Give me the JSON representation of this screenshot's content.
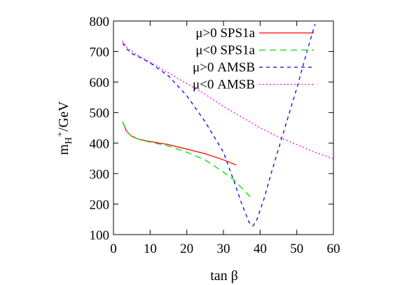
{
  "chart_data": {
    "type": "line",
    "xlabel": "tan β",
    "ylabel_main": "m",
    "ylabel_sub": "H",
    "ylabel_sup": "+",
    "ylabel_tail": "/GeV",
    "xlim": [
      0,
      60
    ],
    "ylim": [
      100,
      800
    ],
    "x_ticks": [
      0,
      10,
      20,
      30,
      40,
      50,
      60
    ],
    "y_ticks": [
      100,
      200,
      300,
      400,
      500,
      600,
      700,
      800
    ],
    "grid": false,
    "legend_position": "top-right",
    "series": [
      {
        "name": "μ>0 SPS1a",
        "color": "#ff0000",
        "dash": "solid",
        "points": [
          [
            2.5,
            470
          ],
          [
            3.5,
            440
          ],
          [
            5,
            422
          ],
          [
            7,
            412
          ],
          [
            10,
            405
          ],
          [
            15,
            395
          ],
          [
            20,
            380
          ],
          [
            25,
            365
          ],
          [
            30,
            345
          ],
          [
            33.5,
            328
          ]
        ]
      },
      {
        "name": "μ<0 SPS1a",
        "color": "#00dd00",
        "dash": "long-dash",
        "points": [
          [
            2.5,
            470
          ],
          [
            3.5,
            440
          ],
          [
            5,
            422
          ],
          [
            7,
            412
          ],
          [
            10,
            403
          ],
          [
            15,
            390
          ],
          [
            20,
            370
          ],
          [
            25,
            345
          ],
          [
            30,
            305
          ],
          [
            33,
            278
          ],
          [
            36,
            240
          ],
          [
            38,
            215
          ]
        ]
      },
      {
        "name": "μ>0 AMSB",
        "color": "#0000ff",
        "dash": "short-dash",
        "points": [
          [
            2.5,
            728
          ],
          [
            3.5,
            710
          ],
          [
            5,
            693
          ],
          [
            7,
            682
          ],
          [
            10,
            663
          ],
          [
            15,
            620
          ],
          [
            20,
            555
          ],
          [
            25,
            470
          ],
          [
            30,
            370
          ],
          [
            33,
            270
          ],
          [
            35,
            200
          ],
          [
            37,
            140
          ],
          [
            38,
            128
          ],
          [
            39,
            145
          ],
          [
            41,
            215
          ],
          [
            43,
            300
          ],
          [
            46,
            420
          ],
          [
            50,
            580
          ],
          [
            53,
            710
          ],
          [
            55,
            790
          ]
        ]
      },
      {
        "name": "μ<0 AMSB",
        "color": "#ff00ff",
        "dash": "dotted",
        "points": [
          [
            2.5,
            735
          ],
          [
            3.5,
            715
          ],
          [
            5,
            700
          ],
          [
            7,
            685
          ],
          [
            10,
            665
          ],
          [
            15,
            630
          ],
          [
            20,
            595
          ],
          [
            25,
            560
          ],
          [
            30,
            520
          ],
          [
            35,
            485
          ],
          [
            40,
            450
          ],
          [
            45,
            420
          ],
          [
            50,
            395
          ],
          [
            55,
            370
          ],
          [
            60,
            348
          ]
        ]
      }
    ]
  }
}
